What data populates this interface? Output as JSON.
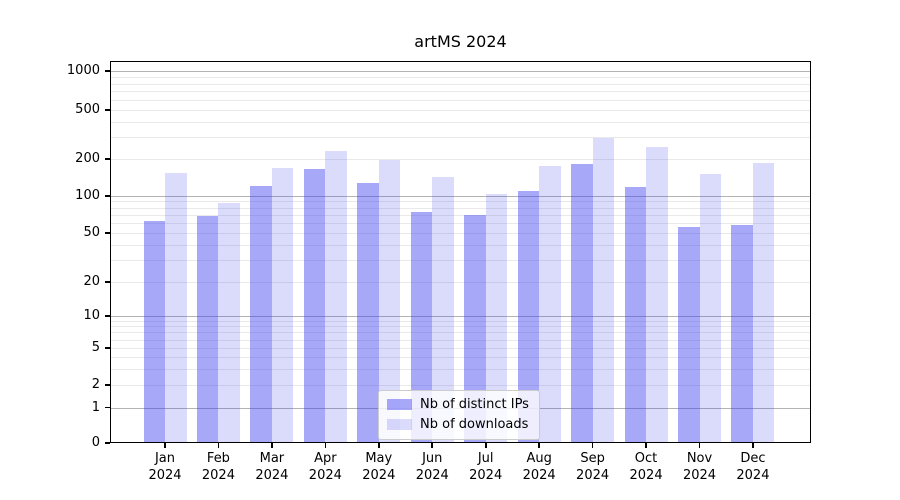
{
  "chart_data": {
    "type": "bar",
    "title": "artMS 2024",
    "months": [
      "Jan",
      "Feb",
      "Mar",
      "Apr",
      "May",
      "Jun",
      "Jul",
      "Aug",
      "Sep",
      "Oct",
      "Nov",
      "Dec"
    ],
    "year_label": "2024",
    "series": [
      {
        "name": "Nb of distinct IPs",
        "color": "rgba(56,56,240,0.44)",
        "values": [
          62,
          69,
          120,
          165,
          128,
          74,
          70,
          109,
          183,
          119,
          56,
          58
        ]
      },
      {
        "name": "Nb of downloads",
        "color": "rgba(56,56,240,0.18)",
        "values": [
          155,
          88,
          170,
          232,
          198,
          142,
          103,
          176,
          295,
          250,
          151,
          186
        ]
      }
    ],
    "yscale": "symlog",
    "ytick_values": [
      0,
      1,
      2,
      5,
      10,
      20,
      50,
      100,
      200,
      500,
      1000
    ],
    "ytick_labels": [
      "0",
      "1",
      "2",
      "5",
      "10",
      "20",
      "50",
      "100",
      "200",
      "500",
      "1000"
    ],
    "ylim": [
      0,
      1200
    ],
    "grid": true,
    "legend_position": "lower center",
    "grid_major_color": "#b3b3b3",
    "grid_minor_color": "#e9e9e9"
  }
}
